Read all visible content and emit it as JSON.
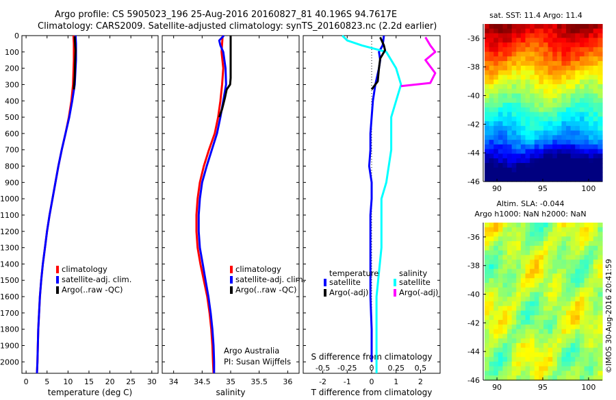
{
  "title_line1": "Argo profile: CS 5905023_196 25-Aug-2016 20160827_81 40.196S 94.7617E",
  "title_line2": "Climatology: CARS2009. Satellite-adjusted climatology: synTS_20160823.nc (2.2d earlier)",
  "credit": "Argo Australia",
  "pi": "PI: Susan Wijffels",
  "timestamp": "©IMOS 30-Aug-2016 20:41:59",
  "colors": {
    "climatology": "#ff0000",
    "satellite": "#0000ff",
    "argo": "#000000",
    "salinity_sat": "#00ffff",
    "salinity_argo": "#ff00ff"
  },
  "chart_data": [
    {
      "type": "line",
      "id": "temperature",
      "xlabel": "temperature (deg C)",
      "xlim": [
        -1,
        31.5
      ],
      "ylim": [
        2070,
        0
      ],
      "xticks": [
        0,
        5,
        10,
        15,
        20,
        25,
        30
      ],
      "yticks": [
        0,
        100,
        200,
        300,
        400,
        500,
        600,
        700,
        800,
        900,
        1000,
        1100,
        1200,
        1300,
        1400,
        1500,
        1600,
        1700,
        1800,
        1900,
        2000
      ],
      "legend": [
        "climatology",
        "satellite-adj. clim.",
        "Argo(..raw -QC)"
      ],
      "series": [
        {
          "name": "climatology",
          "color": "#ff0000",
          "points": [
            [
              11.3,
              0
            ],
            [
              11.4,
              50
            ],
            [
              11.4,
              150
            ],
            [
              11.2,
              300
            ],
            [
              10.8,
              400
            ],
            [
              10.2,
              500
            ],
            [
              9.4,
              600
            ],
            [
              8.5,
              700
            ],
            [
              7.7,
              800
            ],
            [
              7.0,
              900
            ],
            [
              6.3,
              1000
            ],
            [
              5.6,
              1100
            ],
            [
              5.0,
              1200
            ],
            [
              4.5,
              1300
            ],
            [
              4.0,
              1400
            ],
            [
              3.6,
              1500
            ],
            [
              3.3,
              1600
            ],
            [
              3.1,
              1700
            ],
            [
              2.9,
              1800
            ],
            [
              2.8,
              1900
            ],
            [
              2.7,
              2000
            ],
            [
              2.6,
              2070
            ]
          ]
        },
        {
          "name": "satellite-adj. clim.",
          "color": "#0000ff",
          "points": [
            [
              11.8,
              0
            ],
            [
              11.9,
              50
            ],
            [
              11.9,
              150
            ],
            [
              11.6,
              300
            ],
            [
              11.0,
              400
            ],
            [
              10.3,
              500
            ],
            [
              9.4,
              600
            ],
            [
              8.5,
              700
            ],
            [
              7.7,
              800
            ],
            [
              7.0,
              900
            ],
            [
              6.3,
              1000
            ],
            [
              5.6,
              1100
            ],
            [
              5.0,
              1200
            ],
            [
              4.5,
              1300
            ],
            [
              4.0,
              1400
            ],
            [
              3.6,
              1500
            ],
            [
              3.3,
              1600
            ],
            [
              3.1,
              1700
            ],
            [
              2.9,
              1800
            ],
            [
              2.8,
              1900
            ],
            [
              2.7,
              2000
            ],
            [
              2.6,
              2070
            ]
          ]
        },
        {
          "name": "Argo(..raw -QC)",
          "color": "#000000",
          "points": [
            [
              11.6,
              5
            ],
            [
              11.7,
              60
            ],
            [
              11.8,
              90
            ],
            [
              11.7,
              150
            ],
            [
              11.6,
              250
            ],
            [
              11.4,
              330
            ]
          ]
        }
      ]
    },
    {
      "type": "line",
      "id": "salinity",
      "xlabel": "salinity",
      "xlim": [
        33.8,
        36.2
      ],
      "ylim": [
        2070,
        0
      ],
      "xticks": [
        34,
        34.5,
        35,
        35.5,
        36
      ],
      "xticklabels": [
        "34",
        "34.5",
        "35",
        "35.5",
        "36"
      ],
      "legend": [
        "climatology",
        "satellite-adj. clim.",
        "Argo(..raw -QC)"
      ],
      "series": [
        {
          "name": "climatology",
          "color": "#ff0000",
          "points": [
            [
              34.86,
              0
            ],
            [
              34.84,
              100
            ],
            [
              34.87,
              200
            ],
            [
              34.85,
              300
            ],
            [
              34.82,
              400
            ],
            [
              34.78,
              500
            ],
            [
              34.72,
              600
            ],
            [
              34.62,
              700
            ],
            [
              34.53,
              800
            ],
            [
              34.46,
              900
            ],
            [
              34.42,
              1000
            ],
            [
              34.4,
              1100
            ],
            [
              34.4,
              1200
            ],
            [
              34.42,
              1300
            ],
            [
              34.47,
              1400
            ],
            [
              34.53,
              1500
            ],
            [
              34.59,
              1600
            ],
            [
              34.63,
              1700
            ],
            [
              34.66,
              1800
            ],
            [
              34.68,
              1900
            ],
            [
              34.69,
              2000
            ],
            [
              34.7,
              2070
            ]
          ]
        },
        {
          "name": "satellite-adj. clim.",
          "color": "#0000ff",
          "points": [
            [
              34.88,
              0
            ],
            [
              34.8,
              30
            ],
            [
              34.82,
              60
            ],
            [
              34.87,
              100
            ],
            [
              34.91,
              200
            ],
            [
              34.92,
              300
            ],
            [
              34.87,
              400
            ],
            [
              34.82,
              500
            ],
            [
              34.76,
              600
            ],
            [
              34.67,
              700
            ],
            [
              34.58,
              800
            ],
            [
              34.5,
              900
            ],
            [
              34.46,
              1000
            ],
            [
              34.44,
              1100
            ],
            [
              34.44,
              1200
            ],
            [
              34.46,
              1300
            ],
            [
              34.51,
              1400
            ],
            [
              34.56,
              1500
            ],
            [
              34.61,
              1600
            ],
            [
              34.65,
              1700
            ],
            [
              34.68,
              1800
            ],
            [
              34.7,
              1900
            ],
            [
              34.71,
              2000
            ],
            [
              34.71,
              2070
            ]
          ]
        },
        {
          "name": "Argo(..raw -QC)",
          "color": "#000000",
          "points": [
            [
              35.0,
              0
            ],
            [
              35.0,
              100
            ],
            [
              35.0,
              200
            ],
            [
              35.0,
              260
            ],
            [
              34.99,
              300
            ],
            [
              34.93,
              330
            ],
            [
              34.9,
              380
            ],
            [
              34.85,
              450
            ],
            [
              34.8,
              500
            ]
          ]
        }
      ]
    },
    {
      "type": "line",
      "id": "difference",
      "xlabel": "T difference from climatology",
      "xlabel2": "S difference from climatology",
      "xlim": [
        -2.8,
        2.8
      ],
      "ylim": [
        2070,
        0
      ],
      "xticks": [
        -2,
        -1,
        0,
        1,
        2
      ],
      "xticklabels": [
        "-2",
        "-1",
        "0",
        "1",
        "2"
      ],
      "sticks": [
        -0.5,
        -0.25,
        0,
        0.25,
        0.5
      ],
      "sticklabels": [
        "-0.5",
        "-0.25",
        "0",
        "0.25",
        "0.5"
      ],
      "legend_temperature_title": "temperature",
      "legend_salinity_title": "salinity",
      "legend_sat": "satellite",
      "legend_argo": "Argo(-adj)",
      "series": [
        {
          "name": "satellite",
          "group": "temperature",
          "color": "#0000ff",
          "points": [
            [
              0.5,
              0
            ],
            [
              0.45,
              60
            ],
            [
              0.3,
              100
            ],
            [
              0.35,
              150
            ],
            [
              0.3,
              200
            ],
            [
              0.15,
              300
            ],
            [
              0.05,
              400
            ],
            [
              0.0,
              500
            ],
            [
              -0.05,
              600
            ],
            [
              -0.05,
              700
            ],
            [
              -0.1,
              800
            ],
            [
              0.0,
              900
            ],
            [
              0.0,
              1000
            ],
            [
              -0.05,
              1100
            ],
            [
              -0.05,
              1200
            ],
            [
              -0.05,
              1400
            ],
            [
              -0.05,
              1600
            ],
            [
              0.0,
              1800
            ],
            [
              0.0,
              2000
            ]
          ]
        },
        {
          "name": "satellite",
          "group": "salinity",
          "color": "#00ffff",
          "points": [
            [
              -0.3,
              0
            ],
            [
              -0.25,
              30
            ],
            [
              -0.1,
              60
            ],
            [
              0.15,
              100
            ],
            [
              0.25,
              200
            ],
            [
              0.3,
              300
            ],
            [
              0.25,
              400
            ],
            [
              0.2,
              500
            ],
            [
              0.2,
              700
            ],
            [
              0.15,
              900
            ],
            [
              0.1,
              1000
            ],
            [
              0.1,
              1300
            ],
            [
              0.05,
              1600
            ],
            [
              0.05,
              2000
            ],
            [
              0.05,
              2070
            ]
          ]
        },
        {
          "name": "Argo(-adj)",
          "group": "temperature",
          "color": "#000000",
          "points": [
            [
              0.35,
              10
            ],
            [
              0.5,
              60
            ],
            [
              0.55,
              90
            ],
            [
              0.35,
              140
            ],
            [
              0.3,
              200
            ],
            [
              0.25,
              280
            ],
            [
              0.0,
              330
            ]
          ]
        },
        {
          "name": "Argo(-adj)",
          "group": "salinity",
          "color": "#ff00ff",
          "points": [
            [
              0.55,
              10
            ],
            [
              0.6,
              60
            ],
            [
              0.65,
              100
            ],
            [
              0.55,
              150
            ],
            [
              0.65,
              230
            ],
            [
              0.6,
              290
            ],
            [
              0.3,
              310
            ]
          ]
        }
      ]
    },
    {
      "type": "heatmap",
      "id": "sst",
      "title": "sat. SST: 11.4 Argo: 11.4",
      "xlim": [
        88.5,
        101.5
      ],
      "ylim": [
        -46,
        -35
      ],
      "xticks": [
        90,
        95,
        100
      ],
      "yticks": [
        -36,
        -38,
        -40,
        -42,
        -44,
        -46
      ]
    },
    {
      "type": "heatmap",
      "id": "sla",
      "title_line1": "Altim. SLA: -0.044",
      "title_line2": "Argo h1000: NaN h2000: NaN",
      "xlim": [
        88.5,
        101.5
      ],
      "ylim": [
        -46,
        -35
      ],
      "xticks": [
        90,
        95,
        100
      ],
      "yticks": [
        -36,
        -38,
        -40,
        -42,
        -44,
        -46
      ]
    }
  ]
}
